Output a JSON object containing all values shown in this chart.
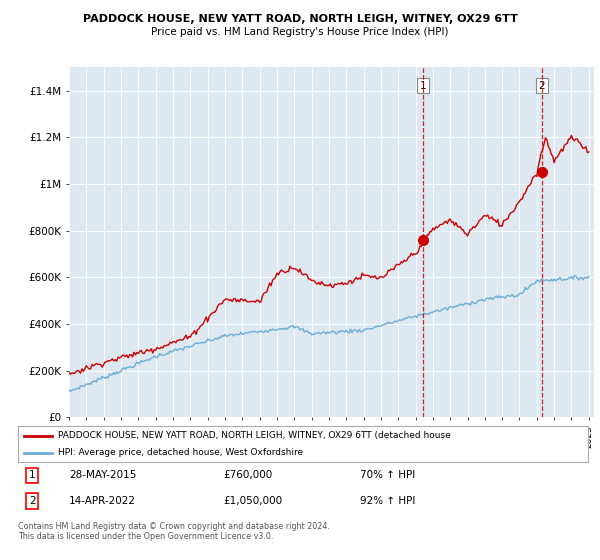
{
  "title": "PADDOCK HOUSE, NEW YATT ROAD, NORTH LEIGH, WITNEY, OX29 6TT",
  "subtitle": "Price paid vs. HM Land Registry's House Price Index (HPI)",
  "bg_color": "#ffffff",
  "plot_bg_color": "#dde8f0",
  "grid_color": "#ffffff",
  "ylim": [
    0,
    1500000
  ],
  "yticks": [
    0,
    200000,
    400000,
    600000,
    800000,
    1000000,
    1200000,
    1400000
  ],
  "ytick_labels": [
    "£0",
    "£200K",
    "£400K",
    "£600K",
    "£800K",
    "£1M",
    "£1.2M",
    "£1.4M"
  ],
  "hpi_color": "#6baed6",
  "price_color": "#cc0000",
  "vline_color": "#cc0000",
  "marker1_year": 2015.42,
  "marker1_price": 760000,
  "marker2_year": 2022.29,
  "marker2_price": 1050000,
  "legend_label1": "PADDOCK HOUSE, NEW YATT ROAD, NORTH LEIGH, WITNEY, OX29 6TT (detached house",
  "legend_label2": "HPI: Average price, detached house, West Oxfordshire",
  "note1_num": "1",
  "note1_date": "28-MAY-2015",
  "note1_price": "£760,000",
  "note1_hpi": "70% ↑ HPI",
  "note2_num": "2",
  "note2_date": "14-APR-2022",
  "note2_price": "£1,050,000",
  "note2_hpi": "92% ↑ HPI",
  "footer": "Contains HM Land Registry data © Crown copyright and database right 2024.\nThis data is licensed under the Open Government Licence v3.0."
}
